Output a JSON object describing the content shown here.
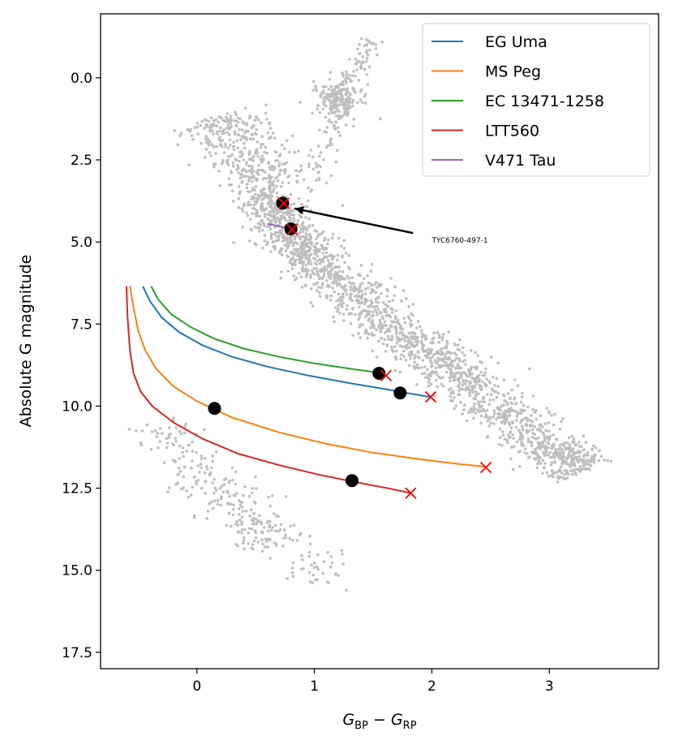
{
  "chart_data": {
    "type": "scatter",
    "xlabel": "G_BP − G_RP",
    "xlabel_parts": {
      "main": "G",
      "sub1": "BP",
      "minus": " − ",
      "main2": "G",
      "sub2": "RP"
    },
    "ylabel": "Absolute G magnitude",
    "xlim": [
      -0.82,
      3.93
    ],
    "ylim": [
      18.0,
      -1.95
    ],
    "y_inverted": true,
    "xticks": [
      0,
      1,
      2,
      3
    ],
    "xtick_labels": [
      "0",
      "1",
      "2",
      "3"
    ],
    "yticks": [
      0.0,
      2.5,
      5.0,
      7.5,
      10.0,
      12.5,
      15.0,
      17.5
    ],
    "ytick_labels": [
      "0.0",
      "2.5",
      "5.0",
      "7.5",
      "10.0",
      "12.5",
      "15.0",
      "17.5"
    ],
    "grid": false,
    "legend_position": "top-right",
    "background_cloud": {
      "color": "#bfbfbf",
      "components": [
        {
          "name": "main-sequence",
          "path": [
            [
              0.55,
              3.5
            ],
            [
              0.75,
              4.6
            ],
            [
              1.0,
              5.6
            ],
            [
              1.4,
              6.8
            ],
            [
              1.8,
              8.0
            ],
            [
              2.2,
              9.0
            ],
            [
              2.6,
              10.2
            ],
            [
              3.0,
              11.3
            ],
            [
              3.3,
              12.0
            ]
          ],
          "spread": 0.15,
          "count": 1900
        },
        {
          "name": "upper-main-sequence",
          "path": [
            [
              0.12,
              1.2
            ],
            [
              0.3,
              1.8
            ],
            [
              0.5,
              2.6
            ],
            [
              0.65,
              3.4
            ]
          ],
          "spread": 0.2,
          "count": 380
        },
        {
          "name": "red-clump",
          "center": [
            1.2,
            0.6
          ],
          "spread_x": 0.1,
          "spread_y": 0.3,
          "count": 170
        },
        {
          "name": "giant-branch",
          "path": [
            [
              1.0,
              3.2
            ],
            [
              1.1,
              2.0
            ],
            [
              1.2,
              1.0
            ],
            [
              1.35,
              -0.3
            ],
            [
              1.5,
              -1.2
            ]
          ],
          "spread": 0.06,
          "count": 130
        },
        {
          "name": "white-dwarf-sequence",
          "path": [
            [
              -0.3,
              10.4
            ],
            [
              0.0,
              12.0
            ],
            [
              0.4,
              13.3
            ],
            [
              0.7,
              14.3
            ]
          ],
          "spread": 0.15,
          "count": 260
        },
        {
          "name": "white-dwarf-tail",
          "center": [
            1.0,
            14.9
          ],
          "spread_x": 0.15,
          "spread_y": 0.25,
          "count": 40
        }
      ]
    },
    "series": [
      {
        "name": "EG Uma",
        "color": "#1f77b4",
        "x": [
          -0.46,
          -0.4,
          -0.3,
          -0.15,
          0.05,
          0.3,
          0.6,
          0.95,
          1.3,
          1.6,
          1.75,
          1.9,
          1.98
        ],
        "y": [
          6.35,
          6.8,
          7.3,
          7.75,
          8.15,
          8.5,
          8.8,
          9.07,
          9.3,
          9.48,
          9.58,
          9.67,
          9.72
        ]
      },
      {
        "name": "MS Peg",
        "color": "#ff7f0e",
        "x": [
          -0.57,
          -0.54,
          -0.5,
          -0.44,
          -0.35,
          -0.2,
          0.0,
          0.3,
          0.7,
          1.1,
          1.5,
          1.9,
          2.2,
          2.46
        ],
        "y": [
          6.35,
          7.0,
          7.7,
          8.3,
          8.85,
          9.4,
          9.85,
          10.35,
          10.8,
          11.15,
          11.42,
          11.62,
          11.75,
          11.85
        ]
      },
      {
        "name": "EC 13471-1258",
        "color": "#2ca02c",
        "x": [
          -0.39,
          -0.33,
          -0.22,
          -0.05,
          0.15,
          0.4,
          0.7,
          1.0,
          1.3,
          1.5,
          1.6
        ],
        "y": [
          6.35,
          6.75,
          7.2,
          7.6,
          7.95,
          8.25,
          8.5,
          8.7,
          8.86,
          8.96,
          9.02
        ]
      },
      {
        "name": "LTT560",
        "color": "#d62728",
        "x": [
          -0.6,
          -0.59,
          -0.57,
          -0.54,
          -0.48,
          -0.38,
          -0.2,
          0.05,
          0.35,
          0.7,
          1.05,
          1.4,
          1.65,
          1.82
        ],
        "y": [
          6.35,
          7.3,
          8.3,
          9.0,
          9.55,
          10.0,
          10.5,
          11.0,
          11.45,
          11.8,
          12.1,
          12.35,
          12.52,
          12.65
        ]
      },
      {
        "name": "V471 Tau",
        "color": "#9467bd",
        "x": [
          0.6,
          0.7,
          0.8,
          0.84
        ],
        "y": [
          4.45,
          4.52,
          4.62,
          4.7
        ]
      }
    ],
    "current_positions": [
      {
        "target": "EG Uma",
        "x": 1.73,
        "y": 9.6
      },
      {
        "target": "MS Peg",
        "x": 0.15,
        "y": 10.07
      },
      {
        "target": "EC 13471-1258",
        "x": 1.55,
        "y": 9.0
      },
      {
        "target": "LTT560",
        "x": 1.32,
        "y": 12.27
      },
      {
        "target": "TYC6760-497-1",
        "x": 0.73,
        "y": 3.82
      },
      {
        "target": "V471 Tau",
        "x": 0.8,
        "y": 4.6
      }
    ],
    "end_points": [
      {
        "target": "EG Uma",
        "x": 1.99,
        "y": 9.72
      },
      {
        "target": "MS Peg",
        "x": 2.46,
        "y": 11.87
      },
      {
        "target": "EC 13471-1258",
        "x": 1.61,
        "y": 9.07
      },
      {
        "target": "LTT560",
        "x": 1.82,
        "y": 12.65
      },
      {
        "target": "TYC6760-497-1",
        "x": 0.74,
        "y": 3.82
      },
      {
        "target": "V471 Tau",
        "x": 0.81,
        "y": 4.62
      }
    ],
    "annotation": {
      "text": "TYC6760-497-1",
      "text_x": 2.0,
      "text_y": 4.95,
      "arrow_from": [
        1.84,
        4.73
      ],
      "arrow_to": [
        0.83,
        3.98
      ]
    },
    "colors": {
      "cloud": "#bfbfbf",
      "current_marker": "#000000",
      "end_marker": "#ff0000",
      "arrow": "#000000"
    }
  }
}
